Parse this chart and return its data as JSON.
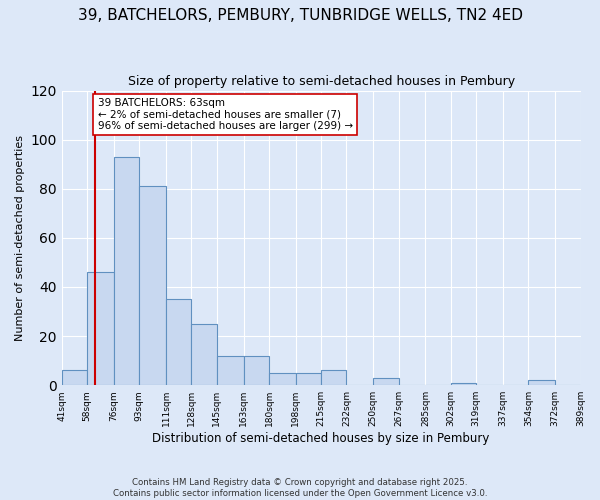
{
  "title": "39, BATCHELORS, PEMBURY, TUNBRIDGE WELLS, TN2 4ED",
  "subtitle": "Size of property relative to semi-detached houses in Pembury",
  "xlabel": "Distribution of semi-detached houses by size in Pembury",
  "ylabel": "Number of semi-detached properties",
  "bin_edges": [
    41,
    58,
    76,
    93,
    111,
    128,
    145,
    163,
    180,
    198,
    215,
    232,
    250,
    267,
    285,
    302,
    319,
    337,
    354,
    372,
    389
  ],
  "bar_heights": [
    6,
    46,
    93,
    81,
    35,
    25,
    12,
    12,
    5,
    5,
    6,
    0,
    3,
    0,
    0,
    1,
    0,
    0,
    2,
    0
  ],
  "bar_color": "#c8d8f0",
  "bar_edge_color": "#6090c0",
  "property_size": 63,
  "vline_color": "#cc0000",
  "annotation_text": "39 BATCHELORS: 63sqm\n← 2% of semi-detached houses are smaller (7)\n96% of semi-detached houses are larger (299) →",
  "annotation_box_color": "#ffffff",
  "annotation_box_edge": "#cc0000",
  "ylim": [
    0,
    120
  ],
  "yticks": [
    0,
    20,
    40,
    60,
    80,
    100,
    120
  ],
  "footer_line1": "Contains HM Land Registry data © Crown copyright and database right 2025.",
  "footer_line2": "Contains public sector information licensed under the Open Government Licence v3.0.",
  "bg_color": "#dde8f8",
  "grid_color": "#ffffff"
}
